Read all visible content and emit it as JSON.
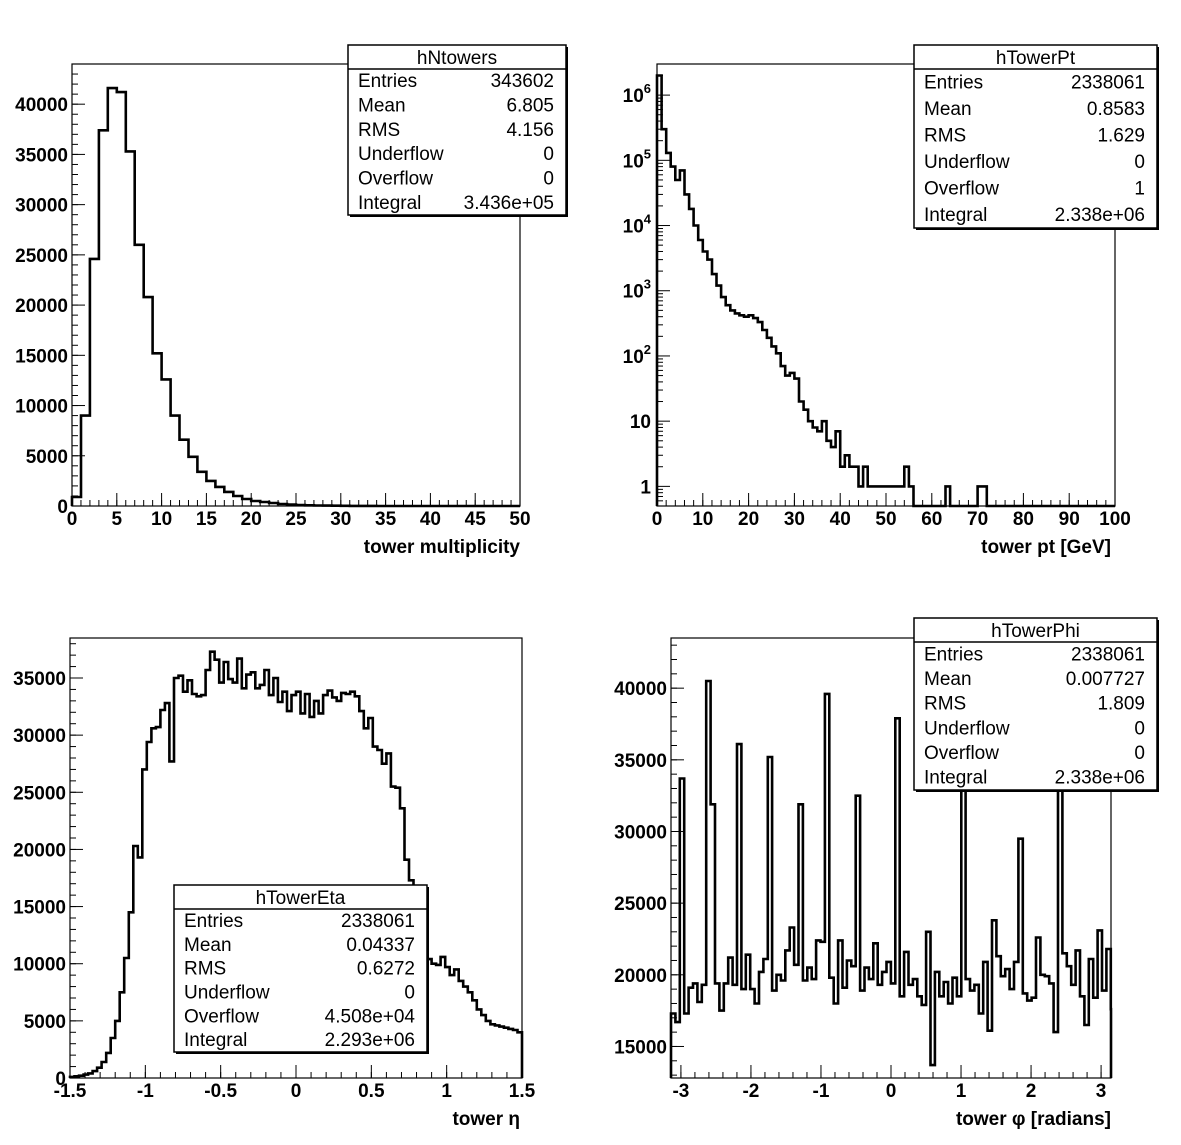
{
  "chart_data": [
    {
      "type": "bar",
      "name": "hNtowers",
      "xlabel": "tower multiplicity",
      "xlim": [
        0,
        50
      ],
      "ylim": [
        0,
        44000
      ],
      "x_ticks": [
        "0",
        "5",
        "10",
        "15",
        "20",
        "25",
        "30",
        "35",
        "40",
        "45",
        "50"
      ],
      "y_ticks": [
        "0",
        "5000",
        "10000",
        "15000",
        "20000",
        "25000",
        "30000",
        "35000",
        "40000"
      ],
      "bin_width": 1,
      "x_start": 0,
      "values": [
        900,
        9000,
        24600,
        37400,
        41600,
        41200,
        35300,
        26000,
        20800,
        15200,
        12600,
        9000,
        6600,
        4900,
        3400,
        2500,
        1900,
        1400,
        1000,
        700,
        500,
        400,
        300,
        200,
        150,
        100,
        70,
        50,
        35,
        25,
        18,
        12,
        8,
        5,
        3,
        2,
        1,
        1,
        0,
        0,
        0,
        0,
        0,
        0,
        0,
        0,
        0,
        0,
        0,
        0
      ],
      "stats": {
        "title": "hNtowers",
        "rows": [
          {
            "label": "Entries",
            "value": "343602"
          },
          {
            "label": "Mean",
            "value": "6.805"
          },
          {
            "label": "RMS",
            "value": "4.156"
          },
          {
            "label": "Underflow",
            "value": "0"
          },
          {
            "label": "Overflow",
            "value": "0"
          },
          {
            "label": "Integral",
            "value": "3.436e+05"
          }
        ]
      }
    },
    {
      "type": "bar",
      "name": "hTowerPt",
      "log_scale_y": true,
      "xlabel": "tower pt [GeV]",
      "xlim": [
        0,
        100
      ],
      "ylim": [
        0.5,
        3000000
      ],
      "x_ticks": [
        "0",
        "10",
        "20",
        "30",
        "40",
        "50",
        "60",
        "70",
        "80",
        "90",
        "100"
      ],
      "y_ticks": [
        {
          "value": 1,
          "label": "1"
        },
        {
          "value": 10,
          "label": "10"
        },
        {
          "value": 100,
          "label": "10^2"
        },
        {
          "value": 1000,
          "label": "10^3"
        },
        {
          "value": 10000,
          "label": "10^4"
        },
        {
          "value": 100000,
          "label": "10^5"
        },
        {
          "value": 1000000,
          "label": "10^6"
        }
      ],
      "bin_width": 1,
      "x_start": 0,
      "values": [
        2000000,
        300000,
        130000,
        80000,
        50000,
        70000,
        30000,
        18000,
        10000,
        6000,
        4000,
        3000,
        1800,
        1200,
        800,
        600,
        500,
        450,
        420,
        400,
        420,
        380,
        330,
        250,
        190,
        140,
        110,
        70,
        50,
        55,
        45,
        20,
        15,
        10,
        8,
        7,
        10,
        5,
        4,
        7,
        2,
        3,
        2,
        2,
        1,
        2,
        1,
        1,
        1,
        1,
        1,
        1,
        1,
        1,
        2,
        1,
        0,
        0,
        0,
        0,
        0,
        0,
        0,
        1,
        0,
        0,
        0,
        0,
        0,
        0,
        1,
        1,
        0,
        0,
        0,
        0,
        0,
        0,
        0,
        0,
        0,
        0,
        0,
        0,
        0,
        0,
        0,
        0,
        0,
        0,
        0,
        0,
        0,
        0,
        0,
        0,
        0,
        0,
        0,
        0
      ],
      "stats": {
        "title": "hTowerPt",
        "rows": [
          {
            "label": "Entries",
            "value": "2338061"
          },
          {
            "label": "Mean",
            "value": "0.8583"
          },
          {
            "label": "RMS",
            "value": "1.629"
          },
          {
            "label": "Underflow",
            "value": "0"
          },
          {
            "label": "Overflow",
            "value": "1"
          },
          {
            "label": "Integral",
            "value": "2.338e+06"
          }
        ]
      }
    },
    {
      "type": "bar",
      "name": "hTowerEta",
      "xlabel": "tower η",
      "xlim": [
        -1.5,
        1.5
      ],
      "ylim": [
        0,
        38500
      ],
      "x_ticks": [
        "-1.5",
        "-1",
        "-0.5",
        "0",
        "0.5",
        "1",
        "1.5"
      ],
      "y_ticks": [
        "0",
        "5000",
        "10000",
        "15000",
        "20000",
        "25000",
        "30000",
        "35000"
      ],
      "bin_width": 0.03,
      "x_start": -1.5,
      "values": [
        100,
        150,
        200,
        300,
        400,
        600,
        900,
        1400,
        2200,
        3500,
        5000,
        7500,
        10500,
        14500,
        20300,
        19300,
        27000,
        29400,
        30600,
        30700,
        32200,
        32800,
        27700,
        35000,
        35200,
        33800,
        34800,
        33600,
        33400,
        33500,
        35700,
        37300,
        36600,
        34600,
        36400,
        34900,
        34600,
        36700,
        34100,
        35300,
        35500,
        34100,
        34400,
        35700,
        33500,
        35000,
        32900,
        33800,
        32100,
        33500,
        33800,
        31900,
        33600,
        31600,
        33000,
        31900,
        33500,
        33900,
        33300,
        33000,
        33700,
        33600,
        33800,
        33400,
        32100,
        30600,
        31500,
        29000,
        28700,
        27500,
        28400,
        25500,
        25400,
        23600,
        19100,
        17300,
        15000,
        13000,
        11500,
        10400,
        10000,
        9900,
        10600,
        9700,
        9000,
        9500,
        8500,
        8000,
        7500,
        6800,
        6000,
        5500,
        5000,
        4700,
        4600,
        4500,
        4400,
        4300,
        4200,
        4000
      ],
      "stats": {
        "title": "hTowerEta",
        "rows": [
          {
            "label": "Entries",
            "value": "2338061"
          },
          {
            "label": "Mean",
            "value": "0.04337"
          },
          {
            "label": "RMS",
            "value": "0.6272"
          },
          {
            "label": "Underflow",
            "value": "0"
          },
          {
            "label": "Overflow",
            "value": "4.508e+04"
          },
          {
            "label": "Integral",
            "value": "2.293e+06"
          }
        ]
      }
    },
    {
      "type": "bar",
      "name": "hTowerPhi",
      "xlabel": "tower φ [radians]",
      "xlim": [
        -3.1416,
        3.1416
      ],
      "ylim": [
        12800,
        43500
      ],
      "x_ticks": [
        {
          "value": -3,
          "label": "-3"
        },
        {
          "value": -2,
          "label": "-2"
        },
        {
          "value": -1,
          "label": "-1"
        },
        {
          "value": 0,
          "label": "0"
        },
        {
          "value": 1,
          "label": "1"
        },
        {
          "value": 2,
          "label": "2"
        },
        {
          "value": 3,
          "label": "3"
        }
      ],
      "y_ticks": [
        {
          "value": 15000,
          "label": "15000"
        },
        {
          "value": 20000,
          "label": "20000"
        },
        {
          "value": 25000,
          "label": "25000"
        },
        {
          "value": 30000,
          "label": "30000"
        },
        {
          "value": 35000,
          "label": "35000"
        },
        {
          "value": 40000,
          "label": "40000"
        }
      ],
      "bin_width": 0.0628,
      "x_start": -3.1416,
      "values": [
        17300,
        16700,
        33700,
        17300,
        19100,
        19400,
        18100,
        19300,
        40500,
        31900,
        19400,
        17500,
        19400,
        21200,
        19300,
        36100,
        19000,
        21400,
        19000,
        18000,
        20200,
        21100,
        35200,
        18900,
        20000,
        19600,
        21700,
        23300,
        20700,
        31900,
        19600,
        20500,
        19700,
        22400,
        22300,
        39600,
        19800,
        18000,
        22400,
        19100,
        21000,
        20600,
        32500,
        18900,
        20500,
        19700,
        22200,
        19300,
        20200,
        20900,
        19400,
        37900,
        18500,
        21600,
        19300,
        19700,
        18500,
        17900,
        23000,
        13700,
        20200,
        18500,
        19500,
        18000,
        19800,
        18500,
        33200,
        19700,
        18900,
        19300,
        17300,
        20900,
        16100,
        23800,
        21300,
        19900,
        20400,
        19000,
        20900,
        29500,
        18700,
        18200,
        18400,
        22600,
        20000,
        19900,
        19400,
        16000,
        36800,
        21500,
        20600,
        19300,
        21700,
        18500,
        16500,
        21100,
        18400,
        23100,
        18900,
        21800,
        17600
      ],
      "stats": {
        "title": "hTowerPhi",
        "rows": [
          {
            "label": "Entries",
            "value": "2338061"
          },
          {
            "label": "Mean",
            "value": "0.007727"
          },
          {
            "label": "RMS",
            "value": "1.809"
          },
          {
            "label": "Underflow",
            "value": "0"
          },
          {
            "label": "Overflow",
            "value": "0"
          },
          {
            "label": "Integral",
            "value": "2.338e+06"
          }
        ]
      }
    }
  ]
}
